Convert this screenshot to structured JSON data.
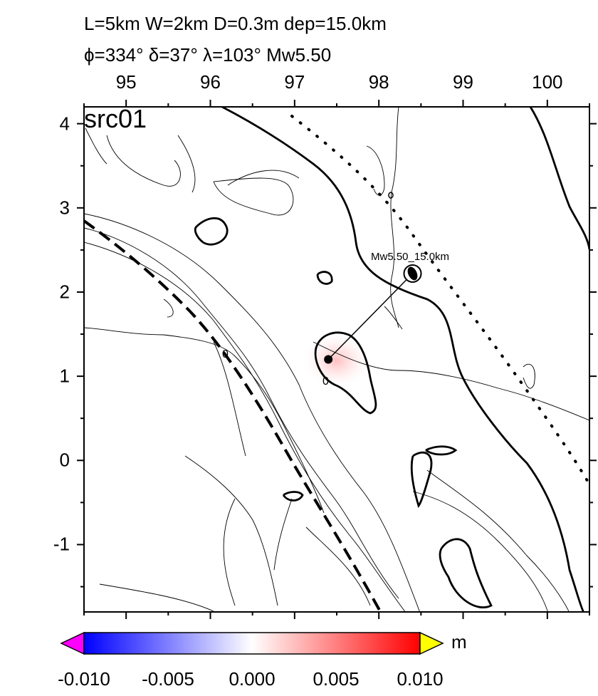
{
  "title": {
    "line1": "L=5km W=2km D=0.3m dep=15.0km",
    "line2": "ϕ=334° δ=37° λ=103° Mw5.50"
  },
  "panel_label": "src01",
  "mechanism_label": "Mw5.50_15.0km",
  "contour_zero_label": "0",
  "x_axis": {
    "ticks": [
      "95",
      "96",
      "97",
      "98",
      "99",
      "100"
    ],
    "range": [
      94.5,
      100.5
    ]
  },
  "y_axis": {
    "ticks": [
      "4",
      "3",
      "2",
      "1",
      "0",
      "-1"
    ],
    "range": [
      -1.8,
      4.2
    ]
  },
  "colorbar": {
    "unit": "m",
    "ticks": [
      "-0.010",
      "-0.005",
      "0.000",
      "0.005",
      "0.010"
    ],
    "range": [
      -0.01,
      0.01
    ],
    "colors": [
      "#0000ff",
      "#ffffff",
      "#ff0000"
    ],
    "under_color": "#ff00ff",
    "over_color": "#ffff00"
  },
  "source": {
    "lon": 97.4,
    "lat": 1.2
  },
  "mechanism": {
    "lon": 98.4,
    "lat": 2.22
  }
}
